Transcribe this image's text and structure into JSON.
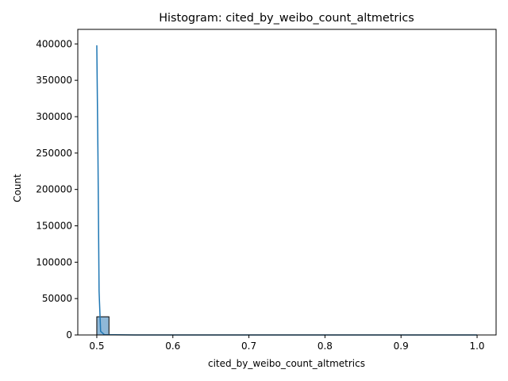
{
  "chart_data": {
    "type": "histogram",
    "title": "Histogram: cited_by_weibo_count_altmetrics",
    "xlabel": "cited_by_weibo_count_altmetrics",
    "ylabel": "Count",
    "xlim": [
      0.475,
      1.025
    ],
    "ylim": [
      0,
      420000
    ],
    "x_ticks": [
      0.5,
      0.6,
      0.7,
      0.8,
      0.9,
      1.0
    ],
    "x_tick_labels": [
      "0.5",
      "0.6",
      "0.7",
      "0.8",
      "0.9",
      "1.0"
    ],
    "y_ticks": [
      0,
      50000,
      100000,
      150000,
      200000,
      250000,
      300000,
      350000,
      400000
    ],
    "y_tick_labels": [
      "0",
      "50000",
      "100000",
      "150000",
      "200000",
      "250000",
      "300000",
      "350000",
      "400000"
    ],
    "bins": [
      {
        "x0": 0.5,
        "x1": 0.516,
        "count": 25000
      }
    ],
    "kde": {
      "x": [
        0.5,
        0.5015,
        0.503,
        0.505,
        0.51,
        0.55,
        0.6,
        0.7,
        0.8,
        0.9,
        1.0
      ],
      "y": [
        398000,
        250000,
        60000,
        5000,
        400,
        0,
        0,
        0,
        0,
        0,
        0
      ]
    },
    "colors": {
      "bar_fill": "#8fb8d8",
      "bar_edge": "#000000",
      "line": "#1f77b4",
      "axis": "#000000"
    },
    "grid": false,
    "legend": "none"
  }
}
